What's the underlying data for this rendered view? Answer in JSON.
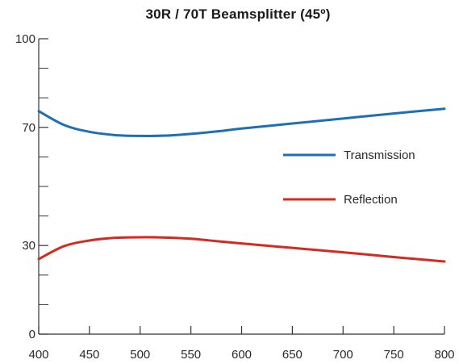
{
  "chart_data": {
    "type": "line",
    "title": "30R / 70T Beamsplitter (45º)",
    "xlabel": "",
    "ylabel": "",
    "xlim": [
      400,
      800
    ],
    "ylim": [
      0,
      100
    ],
    "x_ticks": [
      400,
      450,
      500,
      550,
      600,
      650,
      700,
      750,
      800
    ],
    "y_ticks": [
      0,
      30,
      70,
      100
    ],
    "y_minor_ticks": [
      10,
      20,
      40,
      50,
      60,
      80,
      90
    ],
    "grid": false,
    "legend": {
      "position": "right-center"
    },
    "series": [
      {
        "name": "Transmission",
        "color": "#1f6fb5",
        "x": [
          400,
          425,
          450,
          475,
          500,
          525,
          550,
          575,
          600,
          650,
          700,
          750,
          800
        ],
        "y": [
          75.5,
          70.8,
          68.5,
          67.4,
          67.1,
          67.2,
          67.8,
          68.6,
          69.6,
          71.3,
          73.0,
          74.7,
          76.3
        ]
      },
      {
        "name": "Reflection",
        "color": "#d42a20",
        "x": [
          400,
          425,
          450,
          475,
          500,
          525,
          550,
          575,
          600,
          650,
          700,
          750,
          800
        ],
        "y": [
          25.4,
          29.8,
          31.7,
          32.6,
          32.8,
          32.7,
          32.3,
          31.5,
          30.7,
          29.2,
          27.7,
          26.1,
          24.6
        ]
      }
    ]
  }
}
